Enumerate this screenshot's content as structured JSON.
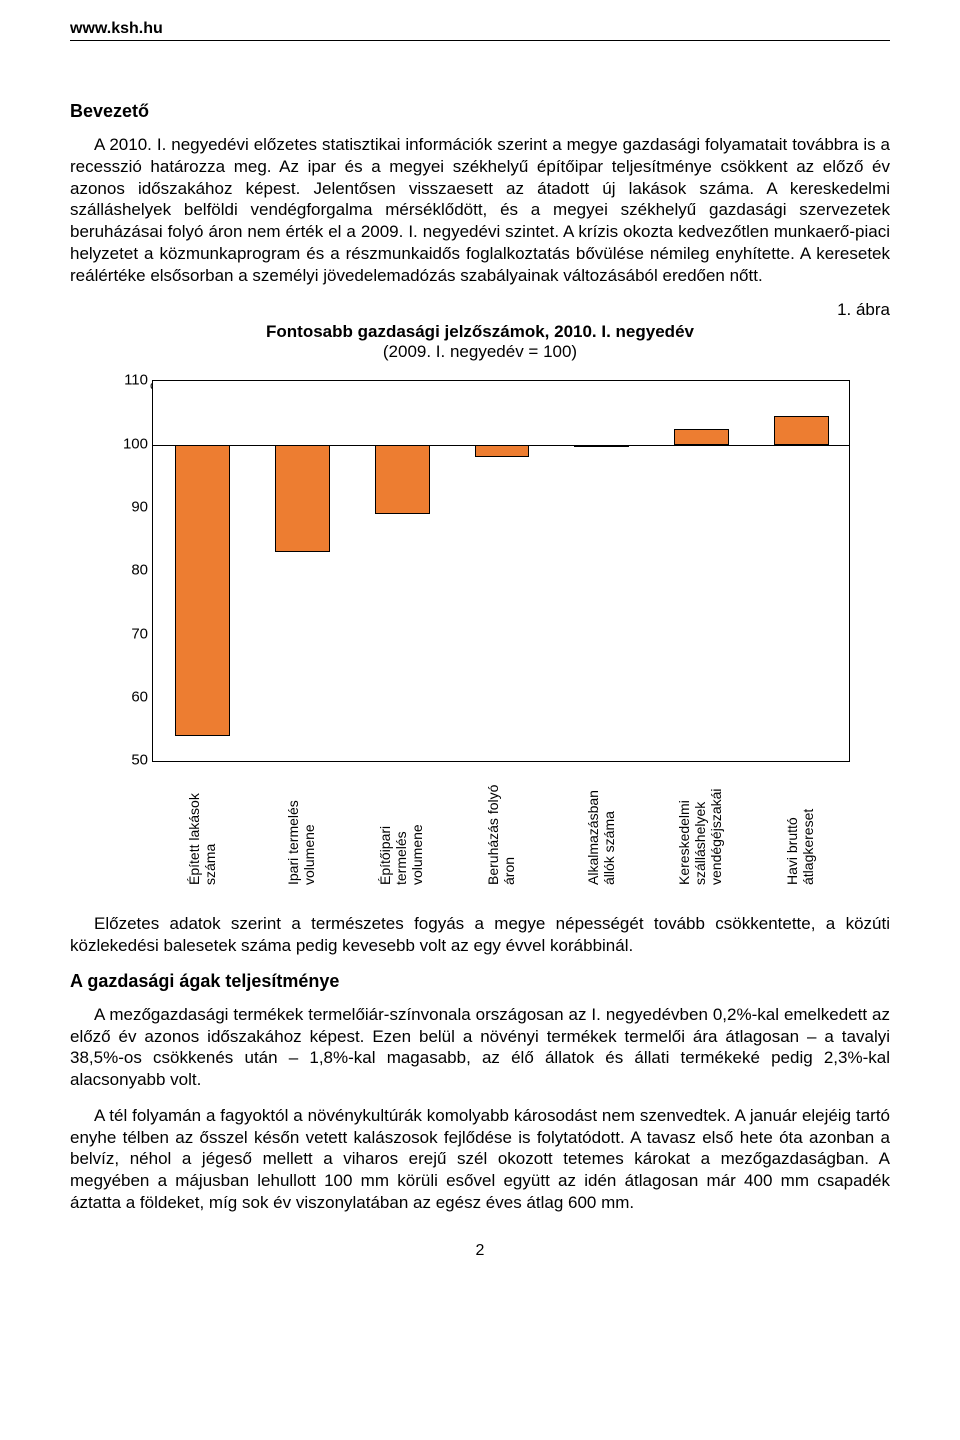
{
  "header": {
    "url": "www.ksh.hu"
  },
  "intro": {
    "heading": "Bevezető",
    "paragraph": "A 2010. I. negyedévi előzetes statisztikai információk szerint a megye gazdasági folyamatait továbbra is a recesszió határozza meg. Az ipar és a megyei székhelyű építőipar teljesítménye csökkent az előző év azonos időszakához képest. Jelentősen visszaesett az átadott új lakások száma. A kereskedelmi szálláshelyek belföldi vendégforgalma mérséklődött, és a megyei székhelyű gazdasági szervezetek beruházásai folyó áron nem érték el a 2009. I. negyedévi szintet. A krízis okozta kedvezőtlen munkaerő-piaci helyzetet a közmunkaprogram és a részmunkaidős foglalkoztatás bővülése némileg enyhítette. A keresetek reálértéke elsősorban a személyi jövedelemadózás szabályainak változásából eredően nőtt."
  },
  "figure": {
    "label": "1. ábra",
    "title": "Fontosabb gazdasági jelzőszámok, 2010. I. negyedév",
    "subtitle": "(2009. I. negyedév = 100)",
    "chart": {
      "type": "bar",
      "y_unit": "%",
      "ylim": [
        50,
        110
      ],
      "ytick_step": 10,
      "yticks": [
        50,
        60,
        70,
        80,
        90,
        100,
        110
      ],
      "baseline": 100,
      "categories": [
        "Épített lakások száma",
        "Ipari termelés volumene",
        "Építőipari termelés volumene",
        "Beruházás folyó áron",
        "Alkalmazásban állók száma",
        "Kereskedelmi szálláshelyek vendégéjszakái",
        "Havi bruttó átlagkereset"
      ],
      "values": [
        54,
        83,
        89,
        98,
        100,
        102.5,
        104.5
      ],
      "bar_color": "#ed7d31",
      "border_color": "#000000",
      "background_color": "#ffffff",
      "grid_color": "#000000",
      "bar_width_ratio": 0.55,
      "label_fontsize": 14,
      "tick_fontsize": 15
    }
  },
  "body": {
    "p2": "Előzetes adatok szerint a természetes fogyás a megye népességét tovább csökkentette, a közúti közlekedési balesetek száma pedig kevesebb volt az egy évvel korábbinál.",
    "h2": "A gazdasági ágak teljesítménye",
    "p3": "A mezőgazdasági termékek termelőiár-színvonala országosan az I. negyedévben 0,2%-kal emelkedett az előző év azonos időszakához képest. Ezen belül a növényi termékek termelői ára átlagosan – a tavalyi 38,5%-os csökkenés után – 1,8%-kal magasabb, az élő állatok és állati termékeké pedig 2,3%-kal alacsonyabb volt.",
    "p4": "A tél folyamán a fagyoktól a növénykultúrák komolyabb károsodást nem szenvedtek. A január elejéig tartó enyhe télben az ősszel későn vetett kalászosok fejlődése is folytatódott. A tavasz első hete óta azonban a belvíz, néhol a jégeső mellett a viharos erejű szél okozott tetemes károkat a mezőgazdaságban. A megyében a májusban lehullott 100 mm körüli esővel együtt az idén átlagosan már 400 mm csapadék áztatta a földeket, míg sok év viszonylatában az egész éves átlag 600 mm."
  },
  "page_number": "2"
}
